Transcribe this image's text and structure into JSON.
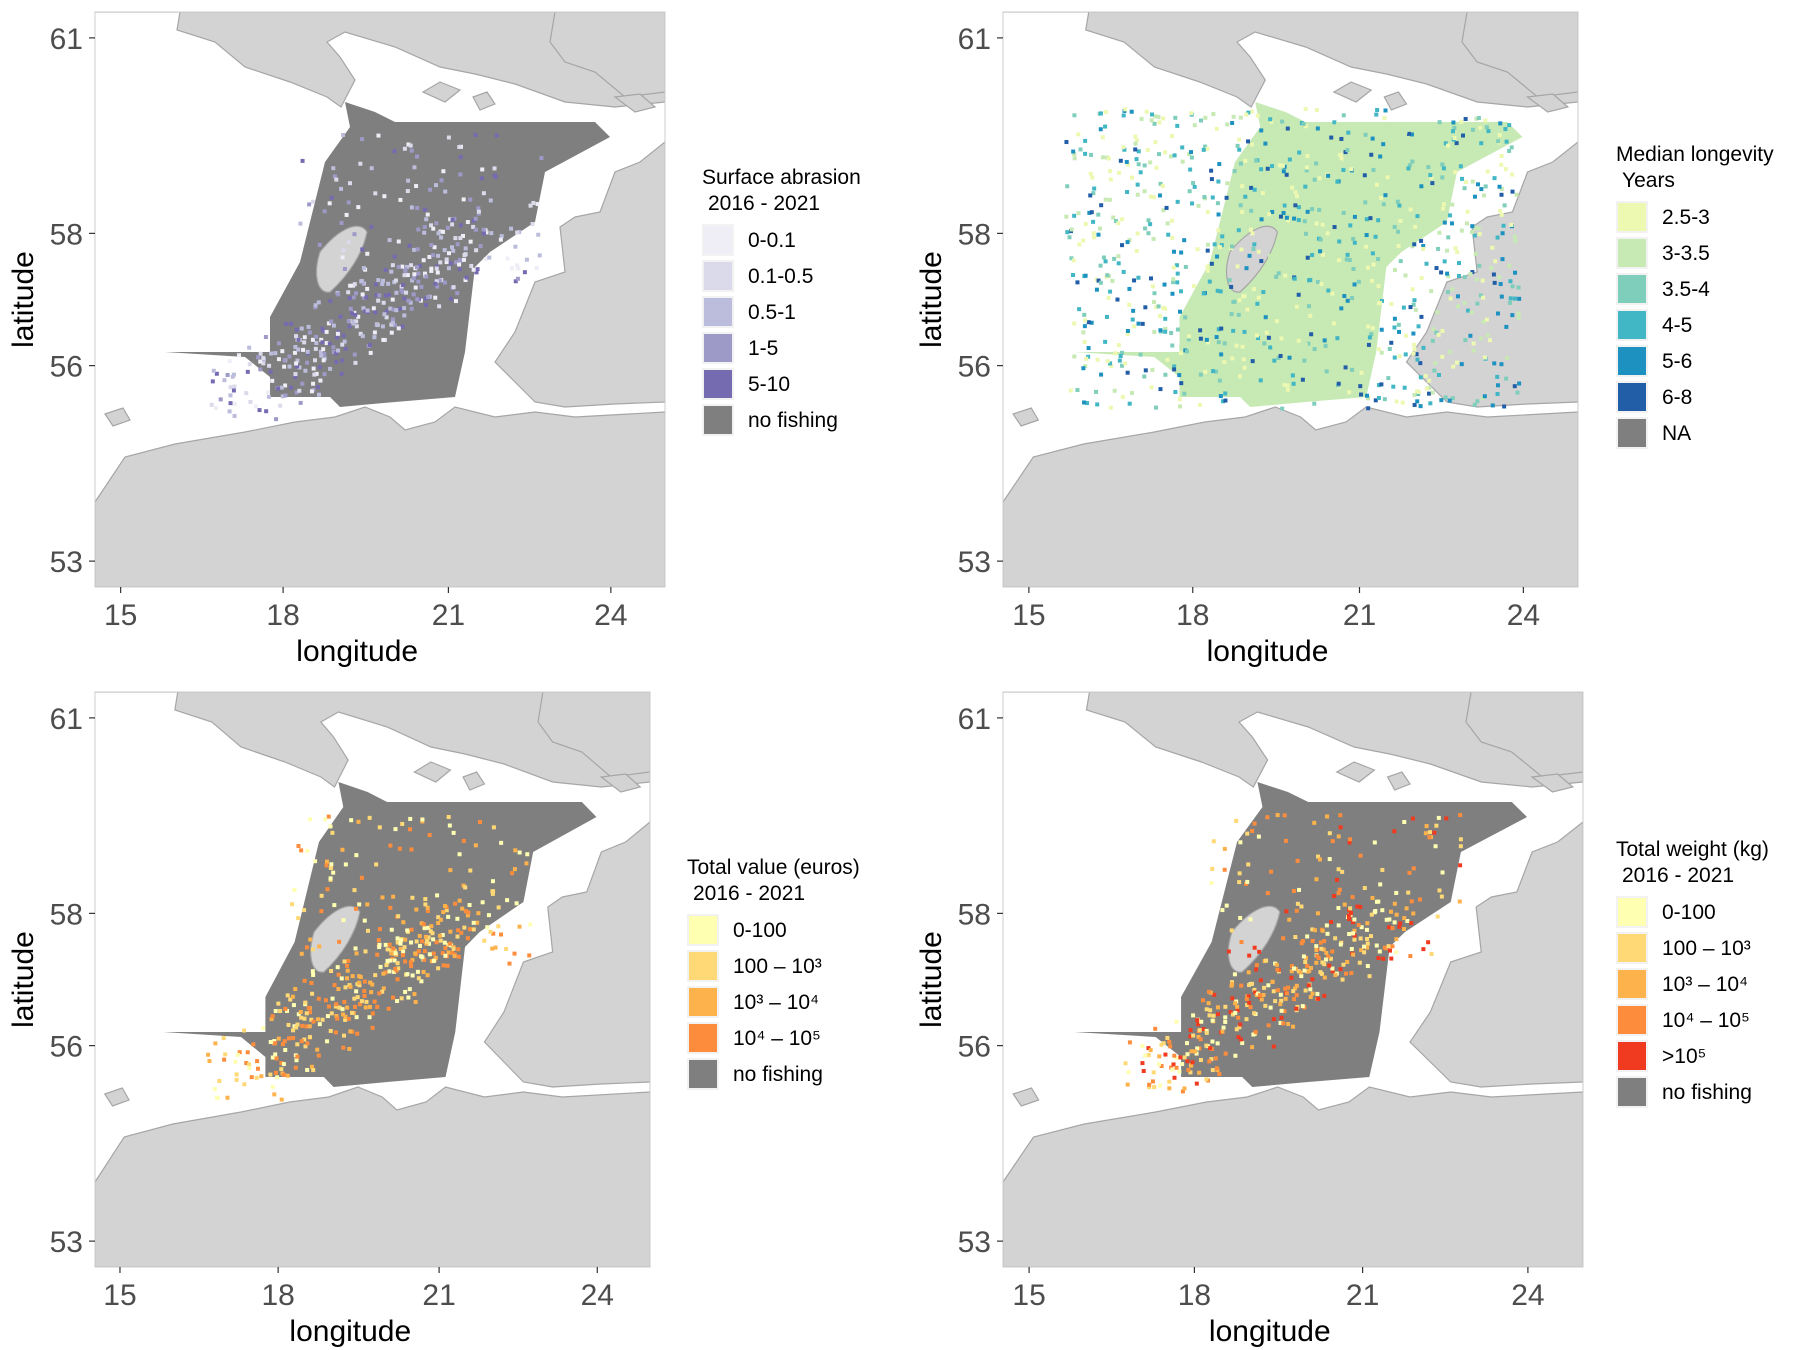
{
  "colors": {
    "land": "#d3d3d3",
    "land_border": "#a6a6a6",
    "sea": "#ffffff",
    "panel_border": "#cccccc",
    "no_fishing": "#7f7f7f"
  },
  "panels": [
    {
      "id": "abrasion",
      "xlabel": "longitude",
      "ylabel": "latitude",
      "x_ticks": [
        "15",
        "18",
        "21",
        "24"
      ],
      "y_ticks": [
        "61",
        "58",
        "56",
        "53"
      ],
      "legend": {
        "title_line1": "Surface abrasion",
        "title_line2": "2016 - 2021",
        "items": [
          {
            "label": "0-0.1",
            "color": "#efedf5"
          },
          {
            "label": "0.1-0.5",
            "color": "#dadaeb"
          },
          {
            "label": "0.5-1",
            "color": "#bcbddc"
          },
          {
            "label": "1-5",
            "color": "#9e9ac8"
          },
          {
            "label": "5-10",
            "color": "#756bb1"
          },
          {
            "label": "no fishing",
            "color": "#7f7f7f"
          }
        ]
      }
    },
    {
      "id": "longevity",
      "xlabel": "longitude",
      "ylabel": "latitude",
      "x_ticks": [
        "15",
        "18",
        "21",
        "24"
      ],
      "y_ticks": [
        "61",
        "58",
        "56",
        "53"
      ],
      "legend": {
        "title_line1": "Median longevity",
        "title_line2": "Years",
        "items": [
          {
            "label": "2.5-3",
            "color": "#edf8b1"
          },
          {
            "label": "3-3.5",
            "color": "#c7e9b4"
          },
          {
            "label": "3.5-4",
            "color": "#7fcdbb"
          },
          {
            "label": "4-5",
            "color": "#41b6c4"
          },
          {
            "label": "5-6",
            "color": "#1d91c0"
          },
          {
            "label": "6-8",
            "color": "#225ea8"
          },
          {
            "label": "NA",
            "color": "#7f7f7f"
          }
        ]
      }
    },
    {
      "id": "value",
      "xlabel": "longitude",
      "ylabel": "latitude",
      "x_ticks": [
        "15",
        "18",
        "21",
        "24"
      ],
      "y_ticks": [
        "61",
        "58",
        "56",
        "53"
      ],
      "legend": {
        "title_line1": "Total value (euros)",
        "title_line2": "2016 - 2021",
        "items": [
          {
            "label": "0-100",
            "color": "#ffffb2"
          },
          {
            "label": "100 – 10³",
            "color": "#fed976"
          },
          {
            "label": "10³ – 10⁴",
            "color": "#feb24c"
          },
          {
            "label": "10⁴ – 10⁵",
            "color": "#fd8d3c"
          },
          {
            "label": "no fishing",
            "color": "#7f7f7f"
          }
        ]
      }
    },
    {
      "id": "weight",
      "xlabel": "longitude",
      "ylabel": "latitude",
      "x_ticks": [
        "15",
        "18",
        "21",
        "24"
      ],
      "y_ticks": [
        "61",
        "58",
        "56",
        "53"
      ],
      "legend": {
        "title_line1": "Total weight (kg)",
        "title_line2": "2016 - 2021",
        "items": [
          {
            "label": "0-100",
            "color": "#ffffb2"
          },
          {
            "label": "100 – 10³",
            "color": "#fed976"
          },
          {
            "label": "10³ – 10⁴",
            "color": "#feb24c"
          },
          {
            "label": "10⁴ – 10⁵",
            "color": "#fd8d3c"
          },
          {
            "label": ">10⁵",
            "color": "#f03b20"
          },
          {
            "label": "no fishing",
            "color": "#7f7f7f"
          }
        ]
      }
    }
  ]
}
